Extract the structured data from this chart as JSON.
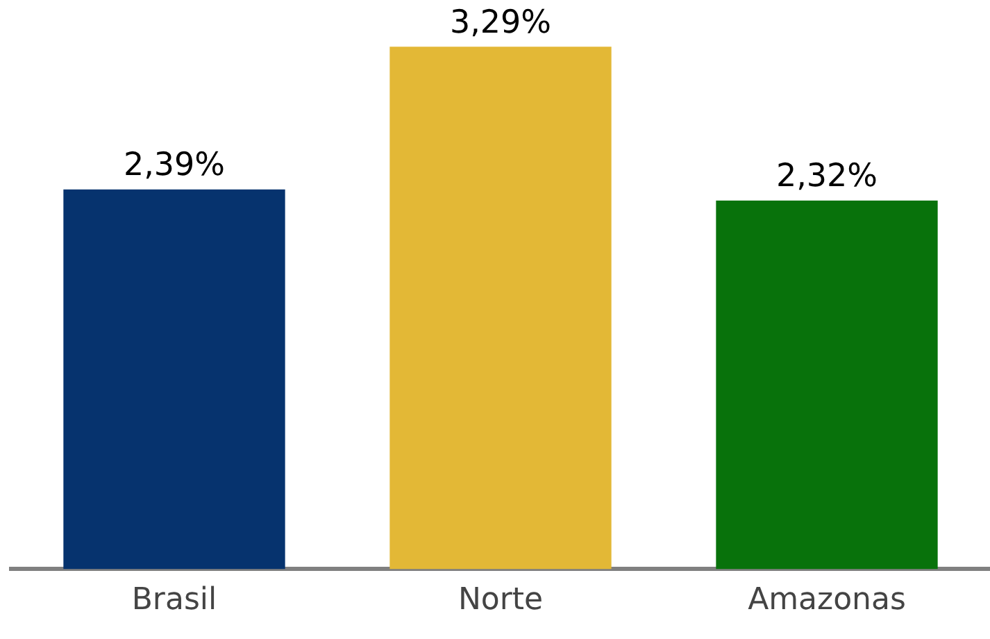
{
  "chart_data": {
    "type": "bar",
    "categories": [
      "Brasil",
      "Norte",
      "Amazonas"
    ],
    "values": [
      2.39,
      3.29,
      2.32
    ],
    "colors": [
      "#06336e",
      "#e3b836",
      "#08720b"
    ],
    "value_labels": [
      "2,39%",
      "3,29%",
      "2,32%"
    ],
    "relative": false,
    "grid": false,
    "legend": false
  }
}
